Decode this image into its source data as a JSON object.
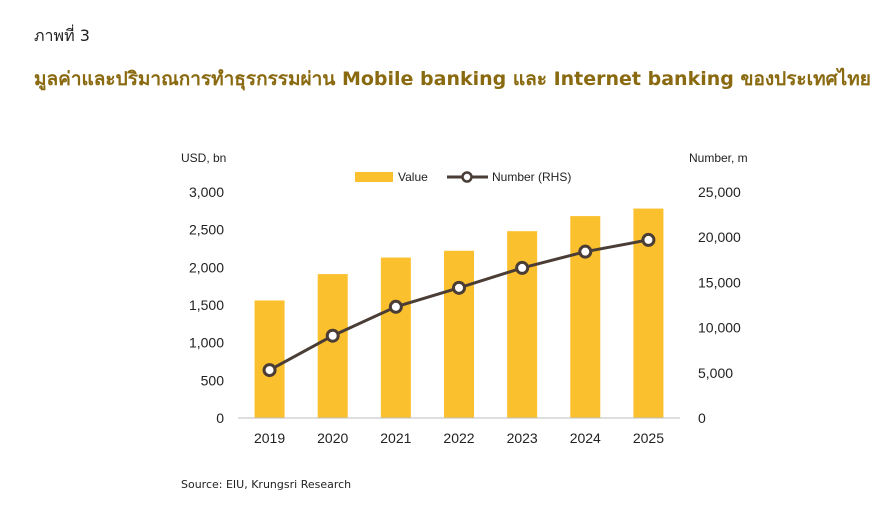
{
  "header": {
    "figure_label": "ภาพที่ 3",
    "title": "มูลค่าและปริมาณการทำธุรกรรมผ่าน Mobile banking และ Internet banking ของประเทศไทย"
  },
  "chart_data": {
    "type": "bar",
    "categories": [
      "2019",
      "2020",
      "2021",
      "2022",
      "2023",
      "2024",
      "2025"
    ],
    "series": [
      {
        "name": "Value",
        "type": "bar",
        "axis": "left",
        "color": "#FBC02D",
        "values": [
          1560,
          1910,
          2130,
          2220,
          2480,
          2680,
          2780
        ]
      },
      {
        "name": "Number (RHS)",
        "type": "line",
        "axis": "right",
        "color": "#4a3d36",
        "values": [
          5300,
          9100,
          12300,
          14400,
          16600,
          18400,
          19700
        ]
      }
    ],
    "y_left": {
      "label": "USD, bn",
      "min": 0,
      "max": 3000,
      "ticks": [
        "0",
        "500",
        "1,000",
        "1,500",
        "2,000",
        "2,500",
        "3,000"
      ]
    },
    "y_right": {
      "label": "Number, m",
      "min": 0,
      "max": 25000,
      "ticks": [
        "0",
        "5,000",
        "10,000",
        "15,000",
        "20,000",
        "25,000"
      ]
    },
    "legend_position": "top-center",
    "grid": false
  },
  "footer": {
    "source": "Source: EIU, Krungsri Research"
  }
}
